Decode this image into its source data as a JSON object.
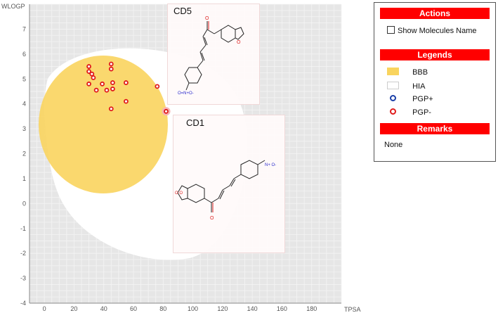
{
  "plot": {
    "y_axis_label": "WLOGP",
    "x_axis_label": "TPSA",
    "x_ticks": [
      "0",
      "20",
      "40",
      "60",
      "80",
      "100",
      "120",
      "140",
      "160",
      "180"
    ],
    "y_ticks": [
      "7",
      "6",
      "5",
      "4",
      "3",
      "2",
      "1",
      "0",
      "-1",
      "-2",
      "-3",
      "-4"
    ]
  },
  "molecules": [
    {
      "name": "CD5",
      "nitro_label": "O=N+O-",
      "carbonyl_label": "O",
      "ring_o_label": "O"
    },
    {
      "name": "CD1",
      "nitro_label": "N+ O-",
      "carbonyl_label": "O",
      "dioxole_label": "O O"
    }
  ],
  "panel": {
    "actions_title": "Actions",
    "show_names_label": "Show Molecules Name",
    "legends_title": "Legends",
    "legends": [
      {
        "label": "BBB",
        "color": "#f9d45e"
      },
      {
        "label": "HIA",
        "color": "#ffffff"
      },
      {
        "label": "PGP+",
        "color": "#1b3fa8"
      },
      {
        "label": "PGP-",
        "color": "#e01b1b"
      }
    ],
    "remarks_title": "Remarks",
    "remarks_text": "None"
  },
  "chart_data": {
    "type": "scatter",
    "xlabel": "TPSA",
    "ylabel": "WLOGP",
    "xlim": [
      -10,
      200
    ],
    "ylim": [
      -4,
      8
    ],
    "grid": true,
    "series": [
      {
        "name": "PGP-",
        "color": "#e01b1b",
        "points": [
          [
            30,
            5.5
          ],
          [
            30,
            5.3
          ],
          [
            32,
            5.2
          ],
          [
            33,
            5.05
          ],
          [
            45,
            5.6
          ],
          [
            45,
            5.4
          ],
          [
            30,
            4.8
          ],
          [
            35,
            4.55
          ],
          [
            39,
            4.8
          ],
          [
            42,
            4.55
          ],
          [
            46,
            4.85
          ],
          [
            46,
            4.6
          ],
          [
            55,
            4.85
          ],
          [
            55,
            4.1
          ],
          [
            45,
            3.8
          ],
          [
            76,
            4.7
          ],
          [
            82,
            3.7
          ]
        ]
      }
    ],
    "regions": [
      {
        "name": "BBB",
        "color": "#f9d45e"
      },
      {
        "name": "HIA",
        "color": "#ffffff"
      }
    ]
  }
}
